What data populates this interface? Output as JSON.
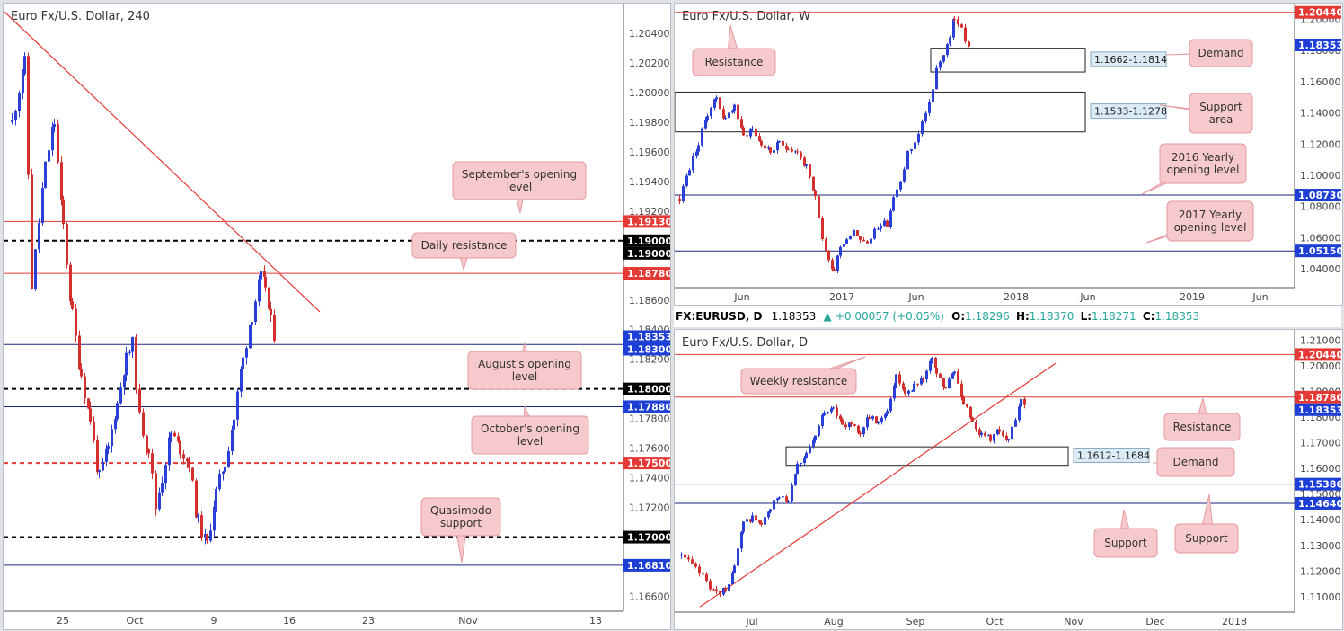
{
  "chart_data": [
    {
      "id": "h4",
      "type": "candlestick",
      "title": "Euro Fx/U.S. Dollar, 240",
      "ylim": [
        1.165,
        1.206
      ],
      "y_ticks": [
        "1.16600",
        "1.16800",
        "1.17000",
        "1.17200",
        "1.17400",
        "1.17600",
        "1.17800",
        "1.18000",
        "1.18200",
        "1.18400",
        "1.18600",
        "1.18800",
        "1.19000",
        "1.19200",
        "1.19400",
        "1.19600",
        "1.19800",
        "1.20000",
        "1.20200",
        "1.20400"
      ],
      "x_ticks": [
        "25",
        "Oct",
        "9",
        "16",
        "23",
        "Nov",
        "13"
      ],
      "levels": [
        {
          "label": "1.19130",
          "value": 1.1913,
          "color": "#e53935",
          "style": "solid",
          "tag": "#e53935"
        },
        {
          "label": "1.19000",
          "value": 1.19,
          "color": "#000000",
          "style": "dashed",
          "tag": "#000000"
        },
        {
          "label": "1.19000",
          "value": 1.19,
          "color": "#000000",
          "style": "none",
          "tag": "#000000"
        },
        {
          "label": "1.18780",
          "value": 1.1878,
          "color": "#e53935",
          "style": "solid",
          "tag": "#e53935"
        },
        {
          "label": "1.18353",
          "value": 1.18353,
          "color": "#1a237e",
          "style": "none",
          "tag": "#1e3fd6"
        },
        {
          "label": "1.18300",
          "value": 1.183,
          "color": "#1a237e",
          "style": "solid",
          "tag": "#1e3fd6"
        },
        {
          "label": "1.18000",
          "value": 1.18,
          "color": "#000000",
          "style": "dashed",
          "tag": "#000000"
        },
        {
          "label": "1.17880",
          "value": 1.1788,
          "color": "#1a237e",
          "style": "solid",
          "tag": "#1e3fd6"
        },
        {
          "label": "1.17500",
          "value": 1.175,
          "color": "#e53935",
          "style": "dashed",
          "tag": "#e53935"
        },
        {
          "label": "1.17000",
          "value": 1.17,
          "color": "#000000",
          "style": "dashed",
          "tag": "#000000"
        },
        {
          "label": "1.16810",
          "value": 1.1681,
          "color": "#1a237e",
          "style": "solid",
          "tag": "#1e3fd6"
        }
      ],
      "trendline": {
        "from": [
          0,
          1.2055
        ],
        "to": [
          352,
          1.1852
        ],
        "color": "#e53935"
      },
      "annotations": [
        {
          "lines": [
            "September's opening",
            "level"
          ]
        },
        {
          "lines": [
            "Daily resistance"
          ]
        },
        {
          "lines": [
            "August's opening",
            "level"
          ]
        },
        {
          "lines": [
            "October's opening",
            "level"
          ]
        },
        {
          "lines": [
            "Quasimodo",
            "support"
          ]
        }
      ],
      "series_anchors": [
        [
          8,
          1.198
        ],
        [
          22,
          1.202
        ],
        [
          30,
          1.187
        ],
        [
          45,
          1.195
        ],
        [
          55,
          1.198
        ],
        [
          65,
          1.191
        ],
        [
          75,
          1.185
        ],
        [
          85,
          1.181
        ],
        [
          95,
          1.178
        ],
        [
          105,
          1.174
        ],
        [
          115,
          1.176
        ],
        [
          125,
          1.179
        ],
        [
          135,
          1.182
        ],
        [
          142,
          1.183
        ],
        [
          150,
          1.178
        ],
        [
          160,
          1.176
        ],
        [
          168,
          1.172
        ],
        [
          175,
          1.174
        ],
        [
          185,
          1.177
        ],
        [
          195,
          1.176
        ],
        [
          205,
          1.175
        ],
        [
          215,
          1.171
        ],
        [
          225,
          1.1695
        ],
        [
          235,
          1.173
        ],
        [
          245,
          1.175
        ],
        [
          255,
          1.178
        ],
        [
          265,
          1.182
        ],
        [
          275,
          1.185
        ],
        [
          285,
          1.1875
        ],
        [
          290,
          1.187
        ],
        [
          296,
          1.1845
        ],
        [
          301,
          1.1835
        ]
      ]
    },
    {
      "id": "weekly",
      "type": "candlestick",
      "title": "Euro Fx/U.S. Dollar, W",
      "ylim": [
        1.028,
        1.21
      ],
      "y_ticks": [
        "1.04000",
        "1.06000",
        "1.08000",
        "1.10000",
        "1.12000",
        "1.14000",
        "1.16000",
        "1.18000",
        "1.20000"
      ],
      "x_ticks": [
        "Jun",
        "2017",
        "Jun",
        "2018",
        "Jun",
        "2019",
        "Jun"
      ],
      "levels": [
        {
          "label": "1.20440",
          "value": 1.2044,
          "color": "#e53935",
          "style": "solid",
          "tag": "#e53935"
        },
        {
          "label": "1.18353",
          "value": 1.18353,
          "color": "#1a237e",
          "style": "none",
          "tag": "#1e3fd6"
        },
        {
          "label": "1.08730",
          "value": 1.0873,
          "color": "#1a237e",
          "style": "solid",
          "tag": "#1e3fd6"
        },
        {
          "label": "1.05150",
          "value": 1.0515,
          "color": "#1a237e",
          "style": "solid",
          "tag": "#1e3fd6"
        }
      ],
      "zones": [
        {
          "label": "1.1662-1.1814",
          "from": 1.1662,
          "to": 1.1814
        },
        {
          "label": "1.1533-1.1278",
          "from": 1.1533,
          "to": 1.1278
        }
      ],
      "annotations": [
        {
          "lines": [
            "Resistance"
          ]
        },
        {
          "lines": [
            "Demand"
          ]
        },
        {
          "lines": [
            "Support",
            "area"
          ]
        },
        {
          "lines": [
            "2016 Yearly",
            "opening level"
          ]
        },
        {
          "lines": [
            "2017 Yearly",
            "opening level"
          ]
        }
      ],
      "series_anchors": [
        [
          4,
          1.085
        ],
        [
          15,
          1.105
        ],
        [
          25,
          1.12
        ],
        [
          35,
          1.14
        ],
        [
          45,
          1.15
        ],
        [
          55,
          1.135
        ],
        [
          65,
          1.145
        ],
        [
          75,
          1.125
        ],
        [
          85,
          1.13
        ],
        [
          95,
          1.12
        ],
        [
          105,
          1.115
        ],
        [
          115,
          1.12
        ],
        [
          125,
          1.118
        ],
        [
          135,
          1.115
        ],
        [
          145,
          1.105
        ],
        [
          155,
          1.085
        ],
        [
          163,
          1.06
        ],
        [
          170,
          1.045
        ],
        [
          176,
          1.04
        ],
        [
          183,
          1.055
        ],
        [
          190,
          1.06
        ],
        [
          198,
          1.065
        ],
        [
          205,
          1.06
        ],
        [
          213,
          1.055
        ],
        [
          221,
          1.065
        ],
        [
          228,
          1.07
        ],
        [
          235,
          1.068
        ],
        [
          242,
          1.085
        ],
        [
          250,
          1.095
        ],
        [
          258,
          1.115
        ],
        [
          266,
          1.12
        ],
        [
          274,
          1.135
        ],
        [
          282,
          1.145
        ],
        [
          290,
          1.168
        ],
        [
          298,
          1.175
        ],
        [
          305,
          1.19
        ],
        [
          310,
          1.2
        ],
        [
          314,
          1.198
        ],
        [
          318,
          1.195
        ],
        [
          322,
          1.185
        ],
        [
          327,
          1.1835
        ]
      ]
    },
    {
      "id": "daily",
      "type": "candlestick",
      "title": "Euro Fx/U.S. Dollar, D",
      "ylim": [
        1.104,
        1.214
      ],
      "y_ticks": [
        "1.11000",
        "1.12000",
        "1.13000",
        "1.14000",
        "1.15000",
        "1.16000",
        "1.17000",
        "1.18000",
        "1.19000",
        "1.20000",
        "1.21000"
      ],
      "x_ticks": [
        "Jul",
        "Aug",
        "Sep",
        "Oct",
        "Nov",
        "Dec",
        "2018"
      ],
      "levels": [
        {
          "label": "1.20440",
          "value": 1.2044,
          "color": "#e53935",
          "style": "solid",
          "tag": "#e53935"
        },
        {
          "label": "1.18780",
          "value": 1.1878,
          "color": "#e53935",
          "style": "solid",
          "tag": "#e53935"
        },
        {
          "label": "1.18353",
          "value": 1.18353,
          "color": "#1a237e",
          "style": "none",
          "tag": "#1e3fd6"
        },
        {
          "label": "1.15386",
          "value": 1.15386,
          "color": "#1a237e",
          "style": "solid",
          "tag": "#1e3fd6"
        },
        {
          "label": "1.14640",
          "value": 1.1464,
          "color": "#1a237e",
          "style": "solid",
          "tag": "#1e3fd6"
        }
      ],
      "zones": [
        {
          "label": "1.1612-1.1684",
          "from": 1.1684,
          "to": 1.1612
        }
      ],
      "trendline": {
        "from": [
          28,
          1.106
        ],
        "to": [
          424,
          1.201
        ],
        "color": "#e53935"
      },
      "annotations": [
        {
          "lines": [
            "Weekly resistance"
          ]
        },
        {
          "lines": [
            "Resistance"
          ]
        },
        {
          "lines": [
            "Demand"
          ]
        },
        {
          "lines": [
            "Support"
          ]
        },
        {
          "lines": [
            "Support"
          ]
        }
      ],
      "series_anchors": [
        [
          6,
          1.126
        ],
        [
          18,
          1.122
        ],
        [
          30,
          1.118
        ],
        [
          45,
          1.111
        ],
        [
          55,
          1.113
        ],
        [
          65,
          1.121
        ],
        [
          75,
          1.138
        ],
        [
          85,
          1.141
        ],
        [
          95,
          1.138
        ],
        [
          105,
          1.144
        ],
        [
          115,
          1.15
        ],
        [
          125,
          1.148
        ],
        [
          135,
          1.162
        ],
        [
          145,
          1.165
        ],
        [
          155,
          1.172
        ],
        [
          165,
          1.182
        ],
        [
          175,
          1.185
        ],
        [
          185,
          1.176
        ],
        [
          195,
          1.178
        ],
        [
          205,
          1.174
        ],
        [
          215,
          1.18
        ],
        [
          225,
          1.178
        ],
        [
          235,
          1.183
        ],
        [
          245,
          1.196
        ],
        [
          255,
          1.19
        ],
        [
          265,
          1.192
        ],
        [
          275,
          1.196
        ],
        [
          285,
          1.202
        ],
        [
          290,
          1.197
        ],
        [
          300,
          1.191
        ],
        [
          310,
          1.198
        ],
        [
          320,
          1.186
        ],
        [
          330,
          1.179
        ],
        [
          340,
          1.173
        ],
        [
          350,
          1.172
        ],
        [
          360,
          1.175
        ],
        [
          370,
          1.171
        ],
        [
          378,
          1.179
        ],
        [
          384,
          1.186
        ],
        [
          390,
          1.1835
        ]
      ]
    }
  ],
  "h4_price_title": "Euro Fx/U.S. Dollar, 240",
  "weekly_title": "Euro Fx/U.S. Dollar, W",
  "daily_title": "Euro Fx/U.S. Dollar, D",
  "daily_header": {
    "symbol": "FX:EURUSD, D",
    "price": "1.18353",
    "change": "+0.00057 (+0.05%)",
    "o_label": "O:",
    "o": "1.18296",
    "h_label": "H:",
    "h": "1.18370",
    "l_label": "L:",
    "l": "1.18271",
    "c_label": "C:",
    "c": "1.18353"
  },
  "colors": {
    "up": "#2a3fd6",
    "down": "#d32f2f",
    "annotation_bg": "#f6c9cc",
    "annotation_border": "#e59ba0",
    "zone_label_bg": "#dcecf6"
  }
}
